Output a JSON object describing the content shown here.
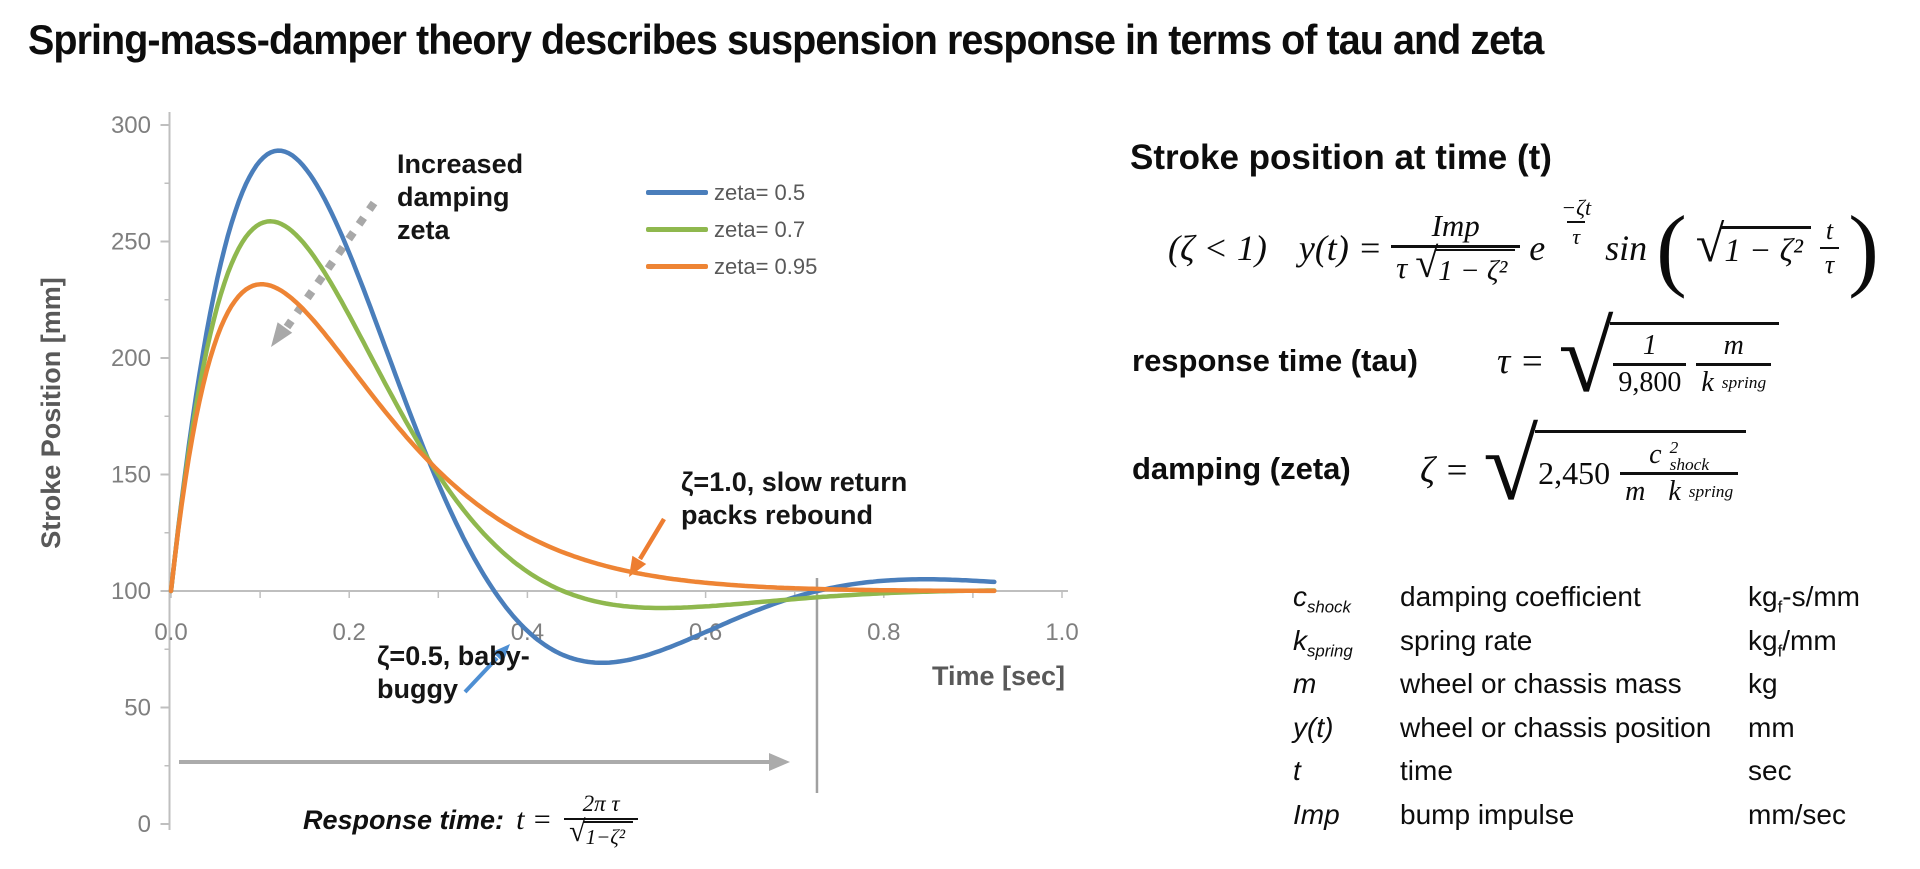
{
  "title": "Spring-mass-damper theory describes suspension response in terms of tau and zeta",
  "chart_data": {
    "type": "line",
    "xlabel": "Time [sec]",
    "ylabel": "Stroke Position [mm]",
    "xlim": [
      0.0,
      1.0
    ],
    "ylim": [
      0,
      300
    ],
    "x_ticks": [
      0.0,
      0.2,
      0.4,
      0.6,
      0.8,
      1.0
    ],
    "x_minor_step": 0.1,
    "y_ticks": [
      0,
      50,
      100,
      150,
      200,
      250,
      300
    ],
    "y_minor_step": 25,
    "grid": false,
    "legend_position": "upper center",
    "baseline": 100,
    "model": "y(t) = baseline + amplitude * exp(-zeta*t/tau) * sin(sqrt(1-zeta^2)*t/tau) / sqrt(1-zeta^2)",
    "tau": 0.1,
    "amplitude": 346,
    "t_end": 0.925,
    "reference_line_x": 0.725,
    "series": [
      {
        "name": "zeta= 0.5",
        "zeta": 0.5,
        "color": "#4A7EBB",
        "key_points": [
          [
            0,
            100
          ],
          [
            0.12,
            289
          ],
          [
            0.36,
            100
          ],
          [
            0.48,
            69
          ],
          [
            0.72,
            100
          ],
          [
            0.81,
            105
          ],
          [
            0.92,
            103
          ]
        ]
      },
      {
        "name": "zeta= 0.7",
        "zeta": 0.7,
        "color": "#8FB84E",
        "key_points": [
          [
            0,
            100
          ],
          [
            0.11,
            259
          ],
          [
            0.4,
            100
          ],
          [
            0.55,
            92
          ],
          [
            0.92,
            100
          ]
        ]
      },
      {
        "name": "zeta= 0.95",
        "zeta": 0.95,
        "color": "#EE8434",
        "key_points": [
          [
            0,
            100
          ],
          [
            0.1,
            232
          ],
          [
            0.5,
            110
          ],
          [
            0.7,
            101
          ],
          [
            0.93,
            100
          ]
        ]
      }
    ]
  },
  "annotations": {
    "increased_damping": {
      "text": "Increased damping zeta",
      "arrow_style": "dotted",
      "arrow_color": "#a8a8a8"
    },
    "zeta_10": {
      "text": "ζ=1.0, slow return packs rebound",
      "arrow_color": "#ED7D31"
    },
    "zeta_05": {
      "text": "ζ=0.5, baby-buggy",
      "arrow_color": "#4E8FD3"
    },
    "response_span_arrow_color": "#ababab",
    "reference_line_color": "#a0a0a0"
  },
  "formulas": {
    "stroke_heading": "Stroke position at time (t)",
    "main": {
      "condition": "(ζ < 1)",
      "lhs": "y(t) =",
      "num": "Imp",
      "den_pre": "τ",
      "den_radicand": "1 − ζ²",
      "exp_base": "e",
      "exp_num": "−ζt",
      "exp_den": "τ",
      "sin": "sin",
      "paren_open": "(",
      "paren_close": ")",
      "sin_radicand": "1 − ζ²",
      "sin_frac_num": "t",
      "sin_frac_den": "τ"
    },
    "tau_label": "response time (tau)",
    "tau": {
      "lhs": "τ =",
      "f1_num": "1",
      "f1_den": "9,800",
      "f2_num": "m",
      "f2_den_base": "k",
      "f2_den_sub": "spring"
    },
    "zeta_label": "damping (zeta)",
    "zeta": {
      "lhs": "ζ =",
      "coef": "2,450",
      "num_base": "c",
      "num_sup": "2",
      "num_sub": "shock",
      "den_pre": "m",
      "den_base": "k",
      "den_sub": "spring"
    },
    "response_time": {
      "label": "Response time:",
      "lhs": "t =",
      "num": "2π τ",
      "den_radicand": "1−ζ²"
    }
  },
  "variables": {
    "rows": [
      {
        "sym": "c",
        "sym_sub": "shock",
        "desc": "damping coefficient",
        "unit_pre": "kg",
        "unit_sub": "f",
        "unit_post": "-s/mm"
      },
      {
        "sym": "k",
        "sym_sub": "spring",
        "desc": "spring rate",
        "unit_pre": "kg",
        "unit_sub": "f",
        "unit_post": "/mm"
      },
      {
        "sym": "m",
        "sym_sub": "",
        "desc": "wheel or chassis mass",
        "unit_pre": "kg",
        "unit_sub": "",
        "unit_post": ""
      },
      {
        "sym": "y(t)",
        "sym_sub": "",
        "desc": "wheel or chassis position",
        "unit_pre": "mm",
        "unit_sub": "",
        "unit_post": ""
      },
      {
        "sym": "t",
        "sym_sub": "",
        "desc": "time",
        "unit_pre": "sec",
        "unit_sub": "",
        "unit_post": ""
      },
      {
        "sym": "Imp",
        "sym_sub": "",
        "desc": "bump impulse",
        "unit_pre": "mm/sec",
        "unit_sub": "",
        "unit_post": ""
      }
    ]
  }
}
